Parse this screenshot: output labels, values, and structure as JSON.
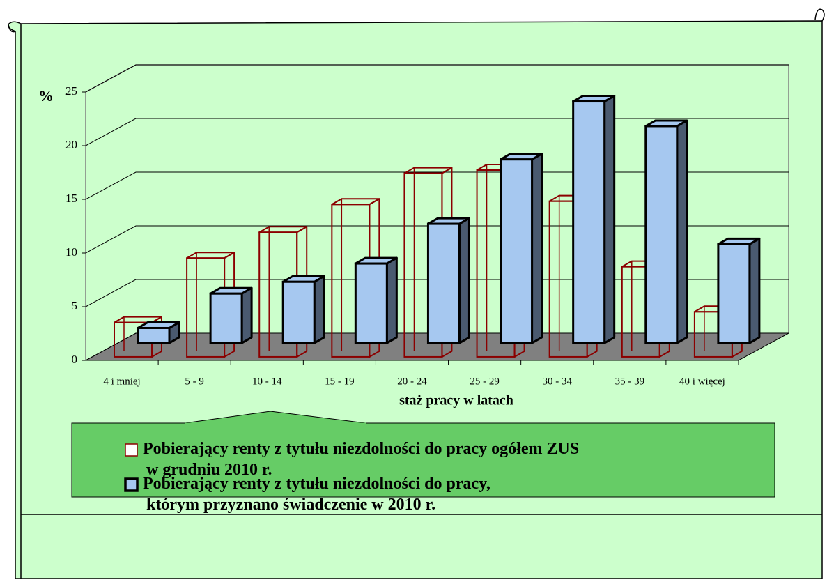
{
  "chart_data": {
    "type": "bar3d",
    "y_unit_label": "%",
    "x_axis_label": "staż pracy w latach",
    "categories": [
      "4 i mniej",
      "5 - 9",
      "10 - 14",
      "15 - 19",
      "20 - 24",
      "25 - 29",
      "30 - 34",
      "35 - 39",
      "40 i więcej"
    ],
    "series": [
      {
        "name": "Pobierający renty z tytułu niezdolności do pracy ogółem ZUS\nw grudniu 2010 r.",
        "color": "#8b0000",
        "fill": "none",
        "values": [
          3.2,
          9.2,
          11.6,
          14.2,
          17.1,
          17.4,
          14.5,
          8.4,
          4.2
        ]
      },
      {
        "name": "Pobierający renty z tytułu niezdolności do pracy,\nktórym przyznano świadczenie w 2010 r.",
        "color": "#000000",
        "fill": "#a6c8f0",
        "values": [
          1.4,
          4.6,
          5.7,
          7.4,
          11.1,
          17.1,
          22.5,
          20.2,
          9.2
        ]
      }
    ],
    "ylim": [
      0,
      25
    ],
    "yticks": [
      0,
      5,
      10,
      15,
      20,
      25
    ],
    "grid": true
  }
}
